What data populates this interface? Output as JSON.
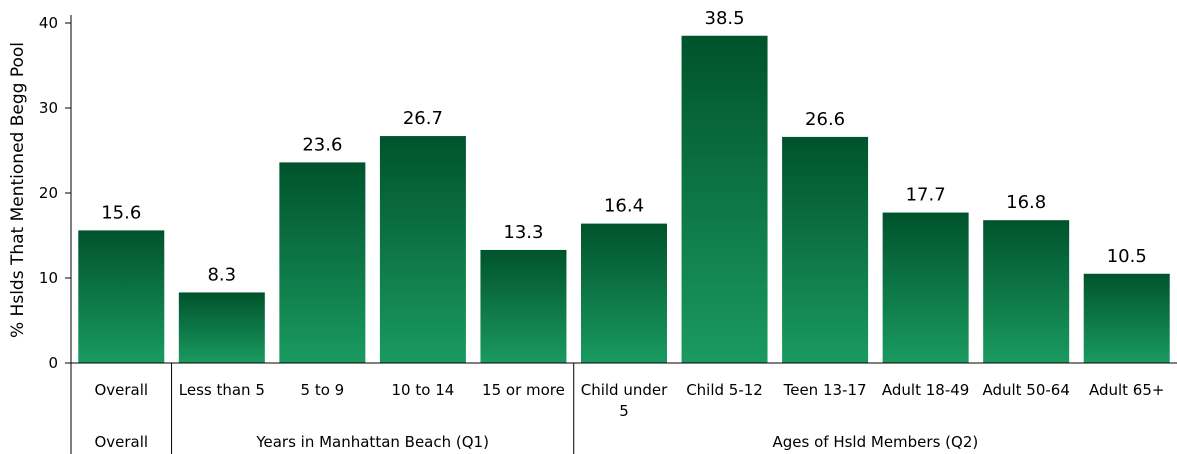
{
  "chart_data": {
    "type": "bar",
    "ylabel": "% Hslds That Mentioned Begg Pool",
    "ylim": [
      0,
      40
    ],
    "yticks": [
      0,
      10,
      20,
      30,
      40
    ],
    "categories": [
      {
        "lines": [
          "Overall"
        ],
        "value": 15.6,
        "value_label": "15.6"
      },
      {
        "lines": [
          "Less than 5"
        ],
        "value": 8.3,
        "value_label": "8.3"
      },
      {
        "lines": [
          "5 to 9"
        ],
        "value": 23.6,
        "value_label": "23.6"
      },
      {
        "lines": [
          "10 to 14"
        ],
        "value": 26.7,
        "value_label": "26.7"
      },
      {
        "lines": [
          "15 or more"
        ],
        "value": 13.3,
        "value_label": "13.3"
      },
      {
        "lines": [
          "Child under",
          "5"
        ],
        "value": 16.4,
        "value_label": "16.4"
      },
      {
        "lines": [
          "Child 5-12"
        ],
        "value": 38.5,
        "value_label": "38.5"
      },
      {
        "lines": [
          "Teen 13-17"
        ],
        "value": 26.6,
        "value_label": "26.6"
      },
      {
        "lines": [
          "Adult 18-49"
        ],
        "value": 17.7,
        "value_label": "17.7"
      },
      {
        "lines": [
          "Adult 50-64"
        ],
        "value": 16.8,
        "value_label": "16.8"
      },
      {
        "lines": [
          "Adult 65+"
        ],
        "value": 10.5,
        "value_label": "10.5"
      }
    ],
    "groups": [
      {
        "label": "",
        "start": 0,
        "end": 0
      },
      {
        "label": "Years in Manhattan Beach (Q1)",
        "start": 1,
        "end": 4
      },
      {
        "label": "Ages of Hsld Members (Q2)",
        "start": 5,
        "end": 10
      }
    ],
    "colors": {
      "bar_top": "#00532c",
      "bar_bottom": "#1a9a60",
      "axis": "#000000"
    }
  }
}
